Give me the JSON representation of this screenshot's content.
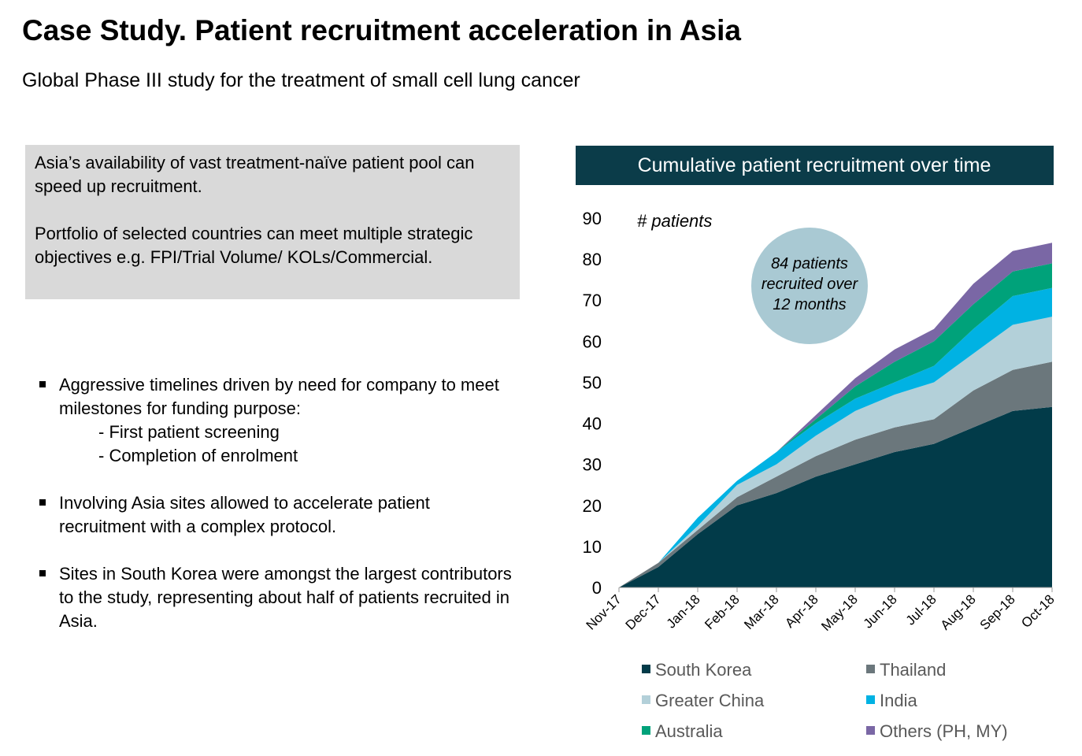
{
  "header": {
    "title": "Case Study. Patient recruitment acceleration in Asia",
    "subtitle": "Global Phase III study for the treatment of small cell lung cancer"
  },
  "info_box": {
    "paragraphs": [
      "Asia’s availability of vast treatment-naïve patient pool can speed up recruitment.",
      "Portfolio of selected countries can meet multiple strategic objectives e.g. FPI/Trial Volume/ KOLs/Commercial."
    ]
  },
  "bullets": [
    {
      "text": "Aggressive timelines driven by need for company to meet milestones for funding purpose:",
      "subitems": [
        "- First patient screening",
        "- Completion of enrolment"
      ]
    },
    {
      "text": "Involving Asia sites allowed to accelerate patient recruitment with a complex protocol."
    },
    {
      "text": "Sites in South Korea were amongst the largest contributors to the study, representing about half of patients recruited in Asia."
    }
  ],
  "chart_data": {
    "type": "stacked_area",
    "title": "Cumulative patient recruitment over time",
    "y_label": "# patients",
    "annotation": "84 patients recruited over 12 months",
    "categories": [
      "Nov-17",
      "Dec-17",
      "Jan-18",
      "Feb-18",
      "Mar-18",
      "Apr-18",
      "May-18",
      "Jun-18",
      "Jul-18",
      "Aug-18",
      "Sep-18",
      "Oct-18"
    ],
    "series": [
      {
        "name": "South Korea",
        "color": "#023b49",
        "values": [
          0,
          5,
          13,
          20,
          23,
          27,
          30,
          33,
          35,
          39,
          43,
          44
        ]
      },
      {
        "name": "Thailand",
        "color": "#6b777c",
        "values": [
          0,
          1,
          1,
          2,
          4,
          5,
          6,
          6,
          6,
          9,
          10,
          11
        ]
      },
      {
        "name": "Greater China",
        "color": "#b3d0d9",
        "values": [
          0,
          0,
          1,
          3,
          3,
          5,
          7,
          8,
          9,
          9,
          11,
          11
        ]
      },
      {
        "name": "India",
        "color": "#00b2e3",
        "values": [
          0,
          0,
          2,
          1,
          3,
          3,
          3,
          3,
          4,
          6,
          7,
          7
        ]
      },
      {
        "name": "Australia",
        "color": "#00a27a",
        "values": [
          0,
          0,
          0,
          0,
          0,
          1,
          3,
          5,
          6,
          6,
          6,
          6
        ]
      },
      {
        "name": "Others (PH, MY)",
        "color": "#7a67a5",
        "values": [
          0,
          0,
          0,
          0,
          0,
          1,
          2,
          3,
          3,
          5,
          5,
          5
        ]
      }
    ],
    "ylim": [
      0,
      90
    ],
    "yticks": [
      0,
      10,
      20,
      30,
      40,
      50,
      60,
      70,
      80,
      90
    ]
  }
}
